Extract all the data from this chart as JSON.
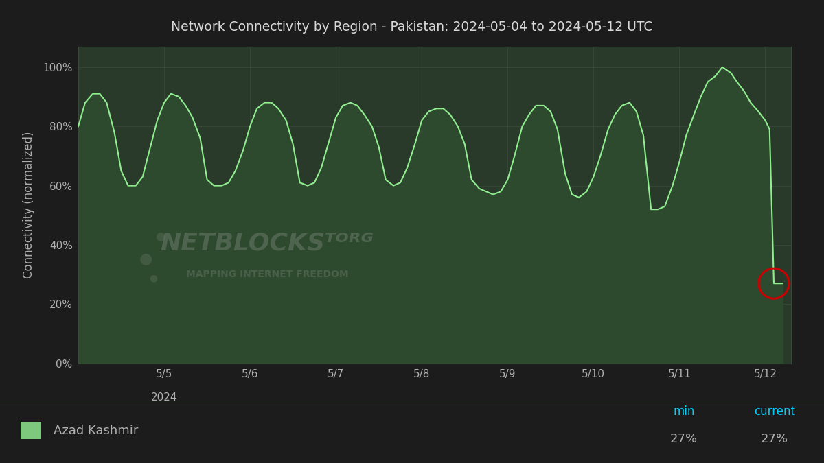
{
  "title": "Network Connectivity by Region - Pakistan: 2024-05-04 to 2024-05-12 UTC",
  "ylabel": "Connectivity (normalized)",
  "bg_color": "#1c1c1c",
  "plot_bg_color": "#2a3a2a",
  "grid_color": "#3a4a3a",
  "line_color": "#90ee90",
  "fill_color": "#2e4a2e",
  "title_color": "#d8d8d8",
  "tick_color": "#b0b0b0",
  "legend_label": "Azad Kashmir",
  "legend_swatch_color": "#7ec87e",
  "legend_bg_color": "#2a2a2a",
  "min_label": "min",
  "current_label": "current",
  "min_value": "27%",
  "current_value": "27%",
  "min_color": "#00cfff",
  "current_color": "#00cfff",
  "circle_color": "#cc0000",
  "netblocks_text_color": "#6a7a6a",
  "y_tick_positions": [
    0,
    20,
    40,
    60,
    80,
    100
  ],
  "y_tick_labels": [
    "0%",
    "20%",
    "40%",
    "60%",
    "80%",
    "100%"
  ],
  "x_tick_positions": [
    1,
    2,
    3,
    4,
    5,
    6,
    7,
    8
  ],
  "x_tick_labels": [
    "5/5",
    "5/6",
    "5/7",
    "5/8",
    "5/9",
    "5/10",
    "5/11",
    "5/12"
  ],
  "ylim": [
    0,
    107
  ],
  "xlim": [
    0.0,
    8.3
  ],
  "data_x": [
    0.0,
    0.08,
    0.17,
    0.25,
    0.33,
    0.42,
    0.5,
    0.58,
    0.67,
    0.75,
    0.83,
    0.92,
    1.0,
    1.08,
    1.17,
    1.25,
    1.33,
    1.42,
    1.5,
    1.58,
    1.67,
    1.75,
    1.83,
    1.92,
    2.0,
    2.08,
    2.17,
    2.25,
    2.33,
    2.42,
    2.5,
    2.58,
    2.67,
    2.75,
    2.83,
    2.92,
    3.0,
    3.08,
    3.17,
    3.25,
    3.33,
    3.42,
    3.5,
    3.58,
    3.67,
    3.75,
    3.83,
    3.92,
    4.0,
    4.08,
    4.17,
    4.25,
    4.33,
    4.42,
    4.5,
    4.58,
    4.67,
    4.75,
    4.83,
    4.92,
    5.0,
    5.08,
    5.17,
    5.25,
    5.33,
    5.42,
    5.5,
    5.58,
    5.67,
    5.75,
    5.83,
    5.92,
    6.0,
    6.08,
    6.17,
    6.25,
    6.33,
    6.42,
    6.5,
    6.58,
    6.67,
    6.75,
    6.83,
    6.92,
    7.0,
    7.08,
    7.17,
    7.25,
    7.33,
    7.42,
    7.5,
    7.6,
    7.67,
    7.75,
    7.83,
    7.92,
    8.0,
    8.05,
    8.1,
    8.13,
    8.17,
    8.2
  ],
  "data_y": [
    80,
    88,
    91,
    91,
    88,
    78,
    65,
    60,
    60,
    63,
    72,
    82,
    88,
    91,
    90,
    87,
    83,
    76,
    62,
    60,
    60,
    61,
    65,
    72,
    80,
    86,
    88,
    88,
    86,
    82,
    74,
    61,
    60,
    61,
    66,
    75,
    83,
    87,
    88,
    87,
    84,
    80,
    73,
    62,
    60,
    61,
    66,
    74,
    82,
    85,
    86,
    86,
    84,
    80,
    74,
    62,
    59,
    58,
    57,
    58,
    62,
    70,
    80,
    84,
    87,
    87,
    85,
    79,
    64,
    57,
    56,
    58,
    63,
    70,
    79,
    84,
    87,
    88,
    85,
    77,
    52,
    52,
    53,
    60,
    68,
    77,
    84,
    90,
    95,
    97,
    100,
    98,
    95,
    92,
    88,
    85,
    82,
    79,
    27,
    27,
    27,
    27
  ]
}
